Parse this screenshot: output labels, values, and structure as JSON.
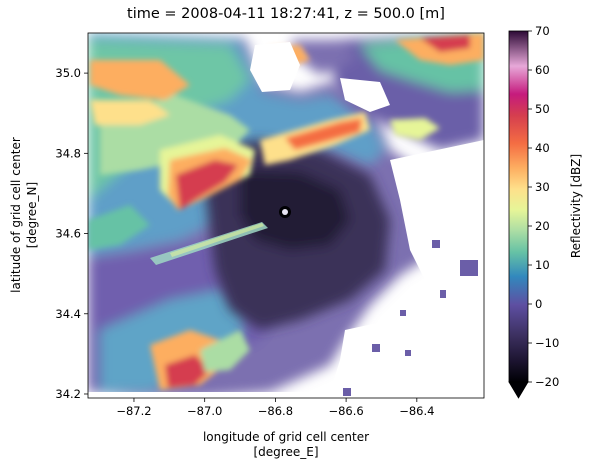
{
  "chart_data": {
    "type": "heatmap",
    "title": "time = 2008-04-11 18:27:41, z = 500.0 [m]",
    "xlabel": [
      "longitude of grid cell center",
      "[degree_E]"
    ],
    "ylabel": [
      "latitude of grid cell center",
      "[degree_N]"
    ],
    "xlim": [
      -87.33,
      -86.21
    ],
    "ylim": [
      34.19,
      35.1
    ],
    "xticks": [
      -87.2,
      -87.0,
      -86.8,
      -86.6,
      -86.4
    ],
    "xtick_labels": [
      "−87.2",
      "−87.0",
      "−86.8",
      "−86.6",
      "−86.4"
    ],
    "yticks": [
      34.2,
      34.4,
      34.6,
      34.8,
      35.0
    ],
    "ytick_labels": [
      "34.2",
      "34.4",
      "34.6",
      "34.8",
      "35.0"
    ],
    "colorbar": {
      "label": "Reflectivity [dBZ]",
      "range": [
        -20,
        70
      ],
      "ticks": [
        -20,
        -10,
        0,
        10,
        20,
        30,
        40,
        50,
        60,
        70
      ],
      "tick_labels": [
        "−20",
        "−10",
        "0",
        "10",
        "20",
        "30",
        "40",
        "50",
        "60",
        "70"
      ],
      "colormap": "Spectral_r",
      "extend": "min"
    },
    "radar_center": {
      "lon": -86.77,
      "lat": 34.65
    },
    "features": [
      {
        "lon": -87.08,
        "lat": 34.95,
        "dbz": 42
      },
      {
        "lon": -87.12,
        "lat": 34.72,
        "dbz": 45
      },
      {
        "lon": -86.92,
        "lat": 34.74,
        "dbz": 40
      },
      {
        "lon": -86.7,
        "lat": 34.83,
        "dbz": 42
      },
      {
        "lon": -86.55,
        "lat": 34.86,
        "dbz": 38
      },
      {
        "lon": -86.36,
        "lat": 35.07,
        "dbz": 48
      },
      {
        "lon": -87.12,
        "lat": 34.26,
        "dbz": 44
      },
      {
        "lon": -87.28,
        "lat": 35.02,
        "dbz": 30
      }
    ]
  },
  "colors": {
    "colormap_stops": [
      "#000004",
      "#3b2f5e",
      "#5e4fa2",
      "#3288bd",
      "#66c2a5",
      "#abdda4",
      "#e6f598",
      "#fee08b",
      "#fdae61",
      "#f46d43",
      "#d53e4f",
      "#c51b7d",
      "#e7a8d8",
      "#2d0a36"
    ]
  }
}
